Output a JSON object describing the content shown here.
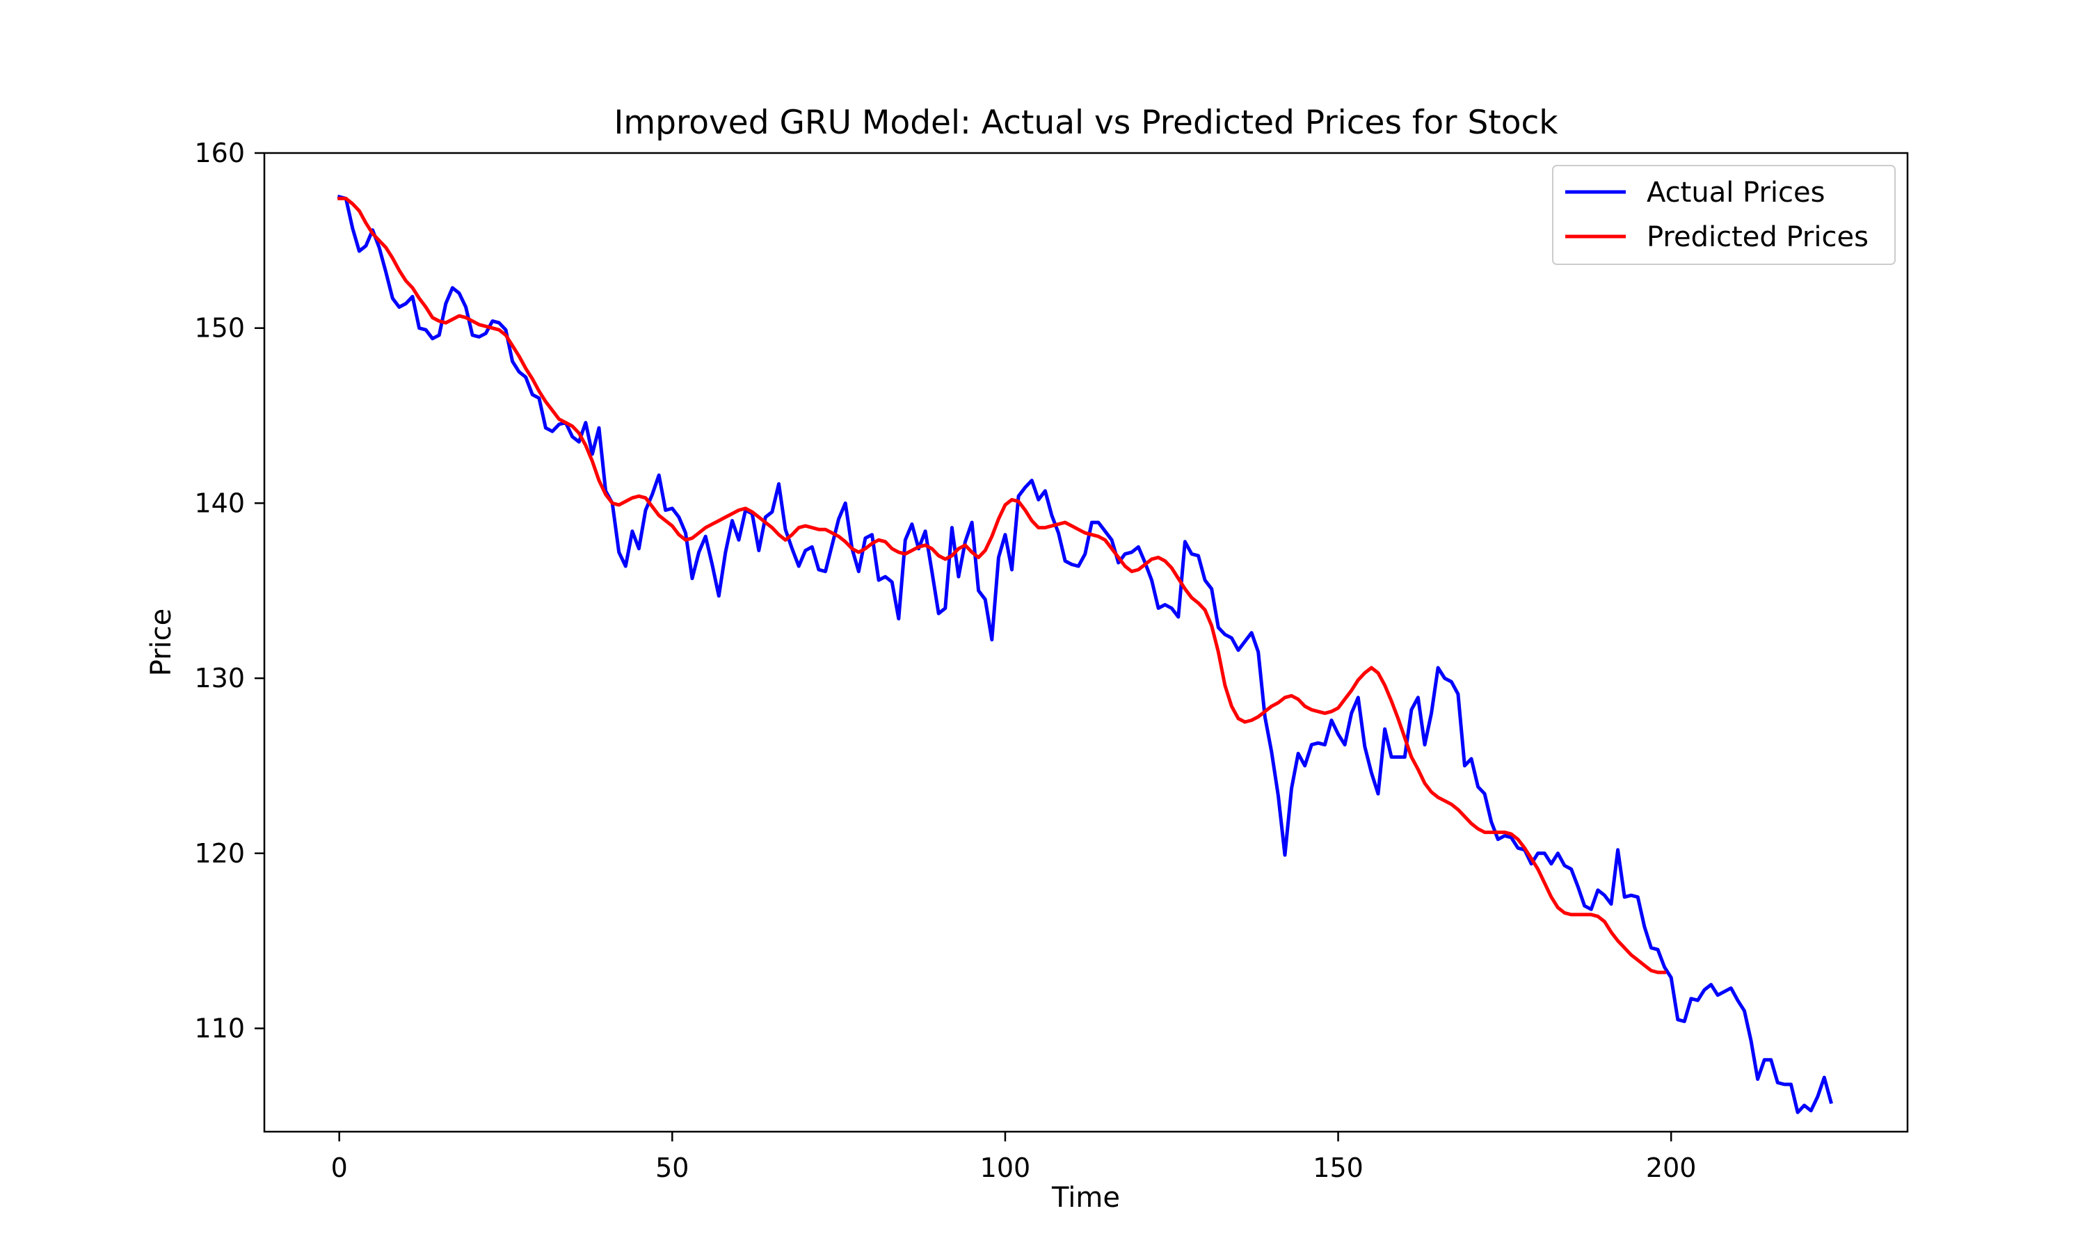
{
  "chart_data": {
    "type": "line",
    "title": "Improved GRU Model: Actual vs Predicted Prices for Stock",
    "xlabel": "Time",
    "ylabel": "Price",
    "xlim": [
      -11.25,
      235.5
    ],
    "ylim": [
      104.1,
      160
    ],
    "xticks": [
      0,
      50,
      100,
      150,
      200
    ],
    "yticks": [
      110,
      120,
      130,
      140,
      150,
      160
    ],
    "grid": false,
    "legend_position": "top-right",
    "x_start": 0,
    "series": [
      {
        "name": "Actual Prices",
        "color": "#0000ff",
        "values": [
          157.5,
          157.4,
          155.7,
          154.4,
          154.7,
          155.6,
          154.6,
          153.2,
          151.7,
          151.2,
          151.4,
          151.8,
          150.0,
          149.9,
          149.4,
          149.6,
          151.4,
          152.3,
          152.0,
          151.2,
          149.6,
          149.5,
          149.7,
          150.4,
          150.3,
          149.9,
          148.1,
          147.5,
          147.2,
          146.2,
          146.0,
          144.3,
          144.1,
          144.5,
          144.6,
          143.8,
          143.5,
          144.6,
          142.8,
          144.3,
          140.7,
          140.0,
          137.2,
          136.4,
          138.4,
          137.4,
          139.6,
          140.5,
          141.6,
          139.6,
          139.7,
          139.2,
          138.3,
          135.7,
          137.2,
          138.1,
          136.5,
          134.7,
          137.2,
          139.0,
          137.9,
          139.6,
          139.4,
          137.3,
          139.2,
          139.5,
          141.1,
          138.5,
          137.4,
          136.4,
          137.3,
          137.5,
          136.2,
          136.1,
          137.6,
          139.1,
          140.0,
          137.4,
          136.1,
          138.0,
          138.2,
          135.6,
          135.8,
          135.5,
          133.4,
          137.9,
          138.8,
          137.4,
          138.4,
          136.1,
          133.7,
          134.0,
          138.6,
          135.8,
          137.8,
          138.9,
          135.0,
          134.5,
          132.2,
          136.9,
          138.2,
          136.2,
          140.4,
          140.9,
          141.3,
          140.2,
          140.7,
          139.3,
          138.3,
          136.7,
          136.5,
          136.4,
          137.1,
          138.9,
          138.9,
          138.4,
          137.9,
          136.6,
          137.1,
          137.2,
          137.5,
          136.6,
          135.6,
          134.0,
          134.2,
          134.0,
          133.5,
          137.8,
          137.1,
          137.0,
          135.6,
          135.1,
          132.9,
          132.5,
          132.3,
          131.6,
          132.1,
          132.6,
          131.5,
          127.8,
          125.8,
          123.3,
          119.9,
          123.7,
          125.7,
          125.0,
          126.2,
          126.3,
          126.2,
          127.6,
          126.8,
          126.2,
          128.0,
          128.9,
          126.1,
          124.6,
          123.4,
          127.1,
          125.5,
          125.5,
          125.5,
          128.2,
          128.9,
          126.2,
          128.0,
          130.6,
          130.0,
          129.8,
          129.1,
          125.0,
          125.4,
          123.8,
          123.4,
          121.8,
          120.8,
          121.0,
          120.9,
          120.3,
          120.2,
          119.4,
          120.0,
          120.0,
          119.4,
          120.0,
          119.3,
          119.1,
          118.1,
          117.0,
          116.8,
          117.9,
          117.6,
          117.1,
          120.2,
          117.5,
          117.6,
          117.5,
          115.8,
          114.6,
          114.5,
          113.5,
          112.9,
          110.5,
          110.4,
          111.7,
          111.6,
          112.2,
          112.5,
          111.9,
          112.1,
          112.3,
          111.6,
          111.0,
          109.3,
          107.1,
          108.2,
          108.2,
          106.9,
          106.8,
          106.8,
          105.2,
          105.6,
          105.3,
          106.1,
          107.2,
          105.8
        ]
      },
      {
        "name": "Predicted Prices",
        "color": "#ff0000",
        "values": [
          157.4,
          157.4,
          157.1,
          156.7,
          156.0,
          155.4,
          155.0,
          154.6,
          154.0,
          153.3,
          152.7,
          152.3,
          151.7,
          151.2,
          150.6,
          150.4,
          150.3,
          150.5,
          150.7,
          150.6,
          150.4,
          150.2,
          150.1,
          150.0,
          149.9,
          149.6,
          149.0,
          148.4,
          147.7,
          147.1,
          146.4,
          145.8,
          145.3,
          144.8,
          144.6,
          144.4,
          144.0,
          143.3,
          142.4,
          141.3,
          140.5,
          140.0,
          139.9,
          140.1,
          140.3,
          140.4,
          140.3,
          139.8,
          139.3,
          139.0,
          138.7,
          138.2,
          137.9,
          138.0,
          138.3,
          138.6,
          138.8,
          139.0,
          139.2,
          139.4,
          139.6,
          139.7,
          139.5,
          139.2,
          138.9,
          138.6,
          138.2,
          137.9,
          138.2,
          138.6,
          138.7,
          138.6,
          138.5,
          138.5,
          138.3,
          138.1,
          137.8,
          137.4,
          137.2,
          137.4,
          137.7,
          137.9,
          137.8,
          137.4,
          137.2,
          137.1,
          137.3,
          137.5,
          137.6,
          137.4,
          137.0,
          136.8,
          137.0,
          137.4,
          137.6,
          137.2,
          136.9,
          137.3,
          138.1,
          139.1,
          139.9,
          140.2,
          140.1,
          139.6,
          139.0,
          138.6,
          138.6,
          138.7,
          138.8,
          138.9,
          138.7,
          138.5,
          138.3,
          138.2,
          138.1,
          137.9,
          137.4,
          136.9,
          136.4,
          136.1,
          136.2,
          136.5,
          136.8,
          136.9,
          136.7,
          136.3,
          135.7,
          135.1,
          134.6,
          134.3,
          133.9,
          133.0,
          131.5,
          129.6,
          128.4,
          127.7,
          127.5,
          127.6,
          127.8,
          128.1,
          128.4,
          128.6,
          128.9,
          129.0,
          128.8,
          128.4,
          128.2,
          128.1,
          128.0,
          128.1,
          128.3,
          128.8,
          129.3,
          129.9,
          130.3,
          130.6,
          130.3,
          129.6,
          128.7,
          127.7,
          126.6,
          125.5,
          124.8,
          124.0,
          123.5,
          123.2,
          123.0,
          122.8,
          122.5,
          122.1,
          121.7,
          121.4,
          121.2,
          121.2,
          121.2,
          121.2,
          121.1,
          120.8,
          120.3,
          119.7,
          119.1,
          118.3,
          117.5,
          116.9,
          116.6,
          116.5,
          116.5,
          116.5,
          116.5,
          116.4,
          116.1,
          115.5,
          115.0,
          114.6,
          114.2,
          113.9,
          113.6,
          113.3,
          113.2,
          113.2
        ]
      }
    ]
  }
}
